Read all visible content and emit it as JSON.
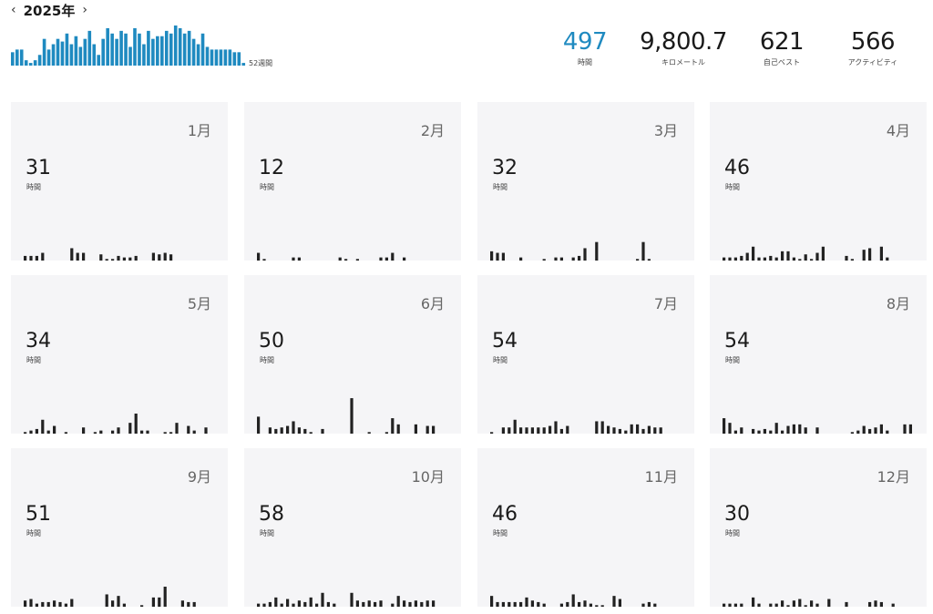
{
  "header": {
    "year_label": "2025年",
    "prev_icon": "chevron-left-icon",
    "next_icon": "chevron-right-icon"
  },
  "weekly": {
    "label": "52週間",
    "color": "#1f8ac0",
    "hours": [
      5,
      6,
      6,
      2,
      1,
      2,
      4,
      10,
      6,
      8,
      10,
      9,
      12,
      8,
      11,
      7,
      10,
      13,
      8,
      4,
      10,
      14,
      12,
      10,
      13,
      12,
      7,
      14,
      12,
      8,
      13,
      10,
      11,
      11,
      13,
      12,
      15,
      14,
      12,
      13,
      10,
      8,
      12,
      7,
      6,
      6,
      6,
      6,
      6,
      5,
      5,
      1
    ]
  },
  "summary": [
    {
      "value": "497",
      "label": "時間",
      "accent": true
    },
    {
      "value": "9,800.7",
      "label": "キロメートル",
      "accent": false
    },
    {
      "value": "621",
      "label": "自己ベスト",
      "accent": false
    },
    {
      "value": "566",
      "label": "アクティビティ",
      "accent": false
    }
  ],
  "months": [
    {
      "name": "1月",
      "hours": "31",
      "unit": "時間",
      "bars": [
        3,
        3,
        3,
        5,
        0,
        0,
        0,
        0,
        8,
        5,
        5,
        0,
        0,
        4,
        1,
        1,
        3,
        2,
        2,
        3,
        0,
        0,
        5,
        4,
        5,
        4
      ]
    },
    {
      "name": "2月",
      "hours": "12",
      "unit": "時間",
      "bars": [
        5,
        1,
        0,
        0,
        0,
        0,
        2,
        2,
        0,
        0,
        0,
        0,
        0,
        0,
        2,
        1,
        0,
        1,
        0,
        0,
        0,
        2,
        2,
        5,
        0,
        2
      ]
    },
    {
      "name": "3月",
      "hours": "32",
      "unit": "時間",
      "bars": [
        6,
        5,
        5,
        0,
        0,
        2,
        0,
        0,
        0,
        1,
        0,
        2,
        2,
        0,
        2,
        3,
        8,
        0,
        12,
        0,
        0,
        0,
        0,
        0,
        0,
        1,
        12,
        1
      ]
    },
    {
      "name": "4月",
      "hours": "46",
      "unit": "時間",
      "bars": [
        2,
        2,
        2,
        3,
        5,
        9,
        2,
        2,
        3,
        2,
        6,
        6,
        2,
        1,
        4,
        1,
        5,
        9,
        0,
        0,
        0,
        3,
        1,
        0,
        7,
        8,
        0,
        9,
        2
      ]
    },
    {
      "name": "5月",
      "hours": "34",
      "unit": "時間",
      "bars": [
        1,
        2,
        3,
        9,
        2,
        5,
        0,
        1,
        0,
        0,
        4,
        0,
        1,
        2,
        0,
        2,
        4,
        0,
        7,
        13,
        2,
        2,
        0,
        0,
        1,
        1,
        7,
        0,
        5,
        2,
        0,
        4
      ]
    },
    {
      "name": "6月",
      "hours": "50",
      "unit": "時間",
      "bars": [
        11,
        0,
        4,
        3,
        4,
        5,
        8,
        4,
        3,
        1,
        0,
        3,
        0,
        0,
        0,
        0,
        23,
        0,
        0,
        1,
        0,
        0,
        1,
        10,
        6,
        0,
        0,
        6,
        0,
        5,
        5
      ]
    },
    {
      "name": "7月",
      "hours": "54",
      "unit": "時間",
      "bars": [
        1,
        0,
        4,
        4,
        9,
        4,
        4,
        4,
        4,
        4,
        5,
        8,
        3,
        5,
        0,
        0,
        0,
        0,
        8,
        8,
        5,
        4,
        3,
        2,
        6,
        6,
        3,
        5,
        4,
        4
      ]
    },
    {
      "name": "8月",
      "hours": "54",
      "unit": "時間",
      "bars": [
        10,
        7,
        2,
        4,
        0,
        3,
        2,
        3,
        2,
        7,
        2,
        5,
        6,
        6,
        4,
        0,
        4,
        0,
        0,
        0,
        0,
        0,
        1,
        2,
        5,
        3,
        4,
        6,
        2,
        0,
        0,
        6,
        6
      ]
    },
    {
      "name": "9月",
      "hours": "51",
      "unit": "時間",
      "bars": [
        4,
        5,
        2,
        3,
        3,
        4,
        3,
        2,
        5,
        0,
        0,
        0,
        0,
        0,
        8,
        4,
        7,
        2,
        0,
        0,
        1,
        0,
        6,
        6,
        13,
        0,
        0,
        4,
        3,
        3
      ]
    },
    {
      "name": "10月",
      "hours": "58",
      "unit": "時間",
      "bars": [
        2,
        2,
        3,
        6,
        2,
        5,
        2,
        4,
        3,
        6,
        2,
        9,
        3,
        2,
        0,
        0,
        9,
        4,
        3,
        4,
        3,
        4,
        0,
        2,
        7,
        4,
        3,
        4,
        3,
        4,
        4,
        0,
        0
      ]
    },
    {
      "name": "11月",
      "hours": "46",
      "unit": "時間",
      "bars": [
        7,
        3,
        3,
        3,
        3,
        3,
        6,
        4,
        3,
        2,
        0,
        0,
        2,
        3,
        8,
        3,
        4,
        2,
        1,
        1,
        0,
        7,
        5,
        0,
        0,
        0,
        2,
        3,
        2
      ]
    },
    {
      "name": "12月",
      "hours": "30",
      "unit": "時間",
      "bars": [
        2,
        2,
        2,
        2,
        0,
        6,
        2,
        0,
        2,
        2,
        4,
        1,
        4,
        5,
        1,
        4,
        2,
        0,
        5,
        0,
        0,
        3,
        0,
        0,
        0,
        3,
        4,
        3,
        0,
        2
      ]
    }
  ]
}
